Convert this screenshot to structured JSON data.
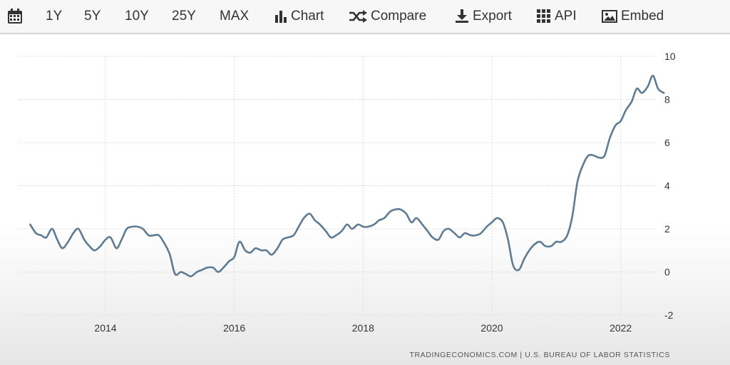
{
  "toolbar": {
    "calendar_icon": "calendar-icon",
    "ranges": [
      "1Y",
      "5Y",
      "10Y",
      "25Y",
      "MAX"
    ],
    "chart_label": "Chart",
    "compare_label": "Compare",
    "export_label": "Export",
    "api_label": "API",
    "embed_label": "Embed"
  },
  "source": "TRADINGECONOMICS.COM  |  U.S. BUREAU OF LABOR STATISTICS",
  "colors": {
    "line": "#5d7b93",
    "grid": "#dcdcdc",
    "toolbar_bg": "#f7f7f7"
  },
  "chart_data": {
    "type": "line",
    "title": "",
    "xlabel": "",
    "ylabel": "",
    "xlim": [
      2012.75,
      2022.67
    ],
    "ylim": [
      -2,
      10
    ],
    "yticks": [
      -2,
      0,
      2,
      4,
      6,
      8,
      10
    ],
    "xticks": [
      "2014",
      "2016",
      "2018",
      "2020",
      "2022"
    ],
    "xtick_values": [
      2014,
      2016,
      2018,
      2020,
      2022
    ],
    "grid": true,
    "series": [
      {
        "values": [
          [
            2012.83,
            2.2
          ],
          [
            2012.92,
            1.8
          ],
          [
            2013.0,
            1.7
          ],
          [
            2013.08,
            1.6
          ],
          [
            2013.17,
            2.0
          ],
          [
            2013.25,
            1.5
          ],
          [
            2013.33,
            1.1
          ],
          [
            2013.42,
            1.4
          ],
          [
            2013.5,
            1.8
          ],
          [
            2013.58,
            2.0
          ],
          [
            2013.67,
            1.5
          ],
          [
            2013.75,
            1.2
          ],
          [
            2013.83,
            1.0
          ],
          [
            2013.92,
            1.2
          ],
          [
            2014.0,
            1.5
          ],
          [
            2014.08,
            1.6
          ],
          [
            2014.17,
            1.1
          ],
          [
            2014.25,
            1.5
          ],
          [
            2014.33,
            2.0
          ],
          [
            2014.42,
            2.1
          ],
          [
            2014.5,
            2.1
          ],
          [
            2014.58,
            2.0
          ],
          [
            2014.67,
            1.7
          ],
          [
            2014.75,
            1.7
          ],
          [
            2014.83,
            1.7
          ],
          [
            2014.92,
            1.3
          ],
          [
            2015.0,
            0.8
          ],
          [
            2015.08,
            -0.1
          ],
          [
            2015.17,
            0.0
          ],
          [
            2015.25,
            -0.1
          ],
          [
            2015.33,
            -0.2
          ],
          [
            2015.42,
            0.0
          ],
          [
            2015.5,
            0.1
          ],
          [
            2015.58,
            0.2
          ],
          [
            2015.67,
            0.2
          ],
          [
            2015.75,
            0.0
          ],
          [
            2015.83,
            0.2
          ],
          [
            2015.92,
            0.5
          ],
          [
            2016.0,
            0.7
          ],
          [
            2016.08,
            1.4
          ],
          [
            2016.17,
            1.0
          ],
          [
            2016.25,
            0.9
          ],
          [
            2016.33,
            1.1
          ],
          [
            2016.42,
            1.0
          ],
          [
            2016.5,
            1.0
          ],
          [
            2016.58,
            0.8
          ],
          [
            2016.67,
            1.1
          ],
          [
            2016.75,
            1.5
          ],
          [
            2016.83,
            1.6
          ],
          [
            2016.92,
            1.7
          ],
          [
            2017.0,
            2.1
          ],
          [
            2017.08,
            2.5
          ],
          [
            2017.17,
            2.7
          ],
          [
            2017.25,
            2.4
          ],
          [
            2017.33,
            2.2
          ],
          [
            2017.42,
            1.9
          ],
          [
            2017.5,
            1.6
          ],
          [
            2017.58,
            1.7
          ],
          [
            2017.67,
            1.9
          ],
          [
            2017.75,
            2.2
          ],
          [
            2017.83,
            2.0
          ],
          [
            2017.92,
            2.2
          ],
          [
            2018.0,
            2.1
          ],
          [
            2018.08,
            2.1
          ],
          [
            2018.17,
            2.2
          ],
          [
            2018.25,
            2.4
          ],
          [
            2018.33,
            2.5
          ],
          [
            2018.42,
            2.8
          ],
          [
            2018.5,
            2.9
          ],
          [
            2018.58,
            2.9
          ],
          [
            2018.67,
            2.7
          ],
          [
            2018.75,
            2.3
          ],
          [
            2018.83,
            2.5
          ],
          [
            2018.92,
            2.2
          ],
          [
            2019.0,
            1.9
          ],
          [
            2019.08,
            1.6
          ],
          [
            2019.17,
            1.5
          ],
          [
            2019.25,
            1.9
          ],
          [
            2019.33,
            2.0
          ],
          [
            2019.42,
            1.8
          ],
          [
            2019.5,
            1.6
          ],
          [
            2019.58,
            1.8
          ],
          [
            2019.67,
            1.7
          ],
          [
            2019.75,
            1.7
          ],
          [
            2019.83,
            1.8
          ],
          [
            2019.92,
            2.1
          ],
          [
            2020.0,
            2.3
          ],
          [
            2020.08,
            2.5
          ],
          [
            2020.17,
            2.3
          ],
          [
            2020.25,
            1.5
          ],
          [
            2020.33,
            0.3
          ],
          [
            2020.42,
            0.1
          ],
          [
            2020.5,
            0.6
          ],
          [
            2020.58,
            1.0
          ],
          [
            2020.67,
            1.3
          ],
          [
            2020.75,
            1.4
          ],
          [
            2020.83,
            1.2
          ],
          [
            2020.92,
            1.2
          ],
          [
            2021.0,
            1.4
          ],
          [
            2021.08,
            1.4
          ],
          [
            2021.17,
            1.7
          ],
          [
            2021.25,
            2.6
          ],
          [
            2021.33,
            4.2
          ],
          [
            2021.42,
            5.0
          ],
          [
            2021.5,
            5.4
          ],
          [
            2021.58,
            5.4
          ],
          [
            2021.67,
            5.3
          ],
          [
            2021.75,
            5.4
          ],
          [
            2021.83,
            6.2
          ],
          [
            2021.92,
            6.8
          ],
          [
            2022.0,
            7.0
          ],
          [
            2022.08,
            7.5
          ],
          [
            2022.17,
            7.9
          ],
          [
            2022.25,
            8.5
          ],
          [
            2022.33,
            8.3
          ],
          [
            2022.42,
            8.6
          ],
          [
            2022.5,
            9.1
          ],
          [
            2022.58,
            8.5
          ],
          [
            2022.67,
            8.3
          ]
        ]
      }
    ]
  }
}
